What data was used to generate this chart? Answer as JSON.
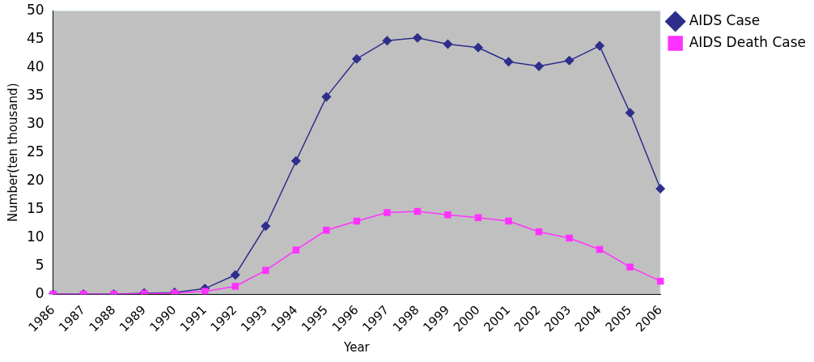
{
  "chart_data": {
    "type": "line",
    "xlabel": "Year",
    "ylabel": "Number(ten thousand)",
    "categories": [
      "1986",
      "1987",
      "1988",
      "1989",
      "1990",
      "1991",
      "1992",
      "1993",
      "1994",
      "1995",
      "1996",
      "1997",
      "1998",
      "1999",
      "2000",
      "2001",
      "2002",
      "2003",
      "2004",
      "2005",
      "2006"
    ],
    "series": [
      {
        "name": "AIDS Case",
        "color": "#2e2e8c",
        "marker": "diamond",
        "values": [
          0,
          0,
          0,
          0.2,
          0.3,
          1,
          3.4,
          12,
          23.5,
          34.8,
          41.5,
          44.7,
          45.2,
          44.1,
          43.5,
          41,
          40.2,
          41.2,
          43.8,
          32,
          18.6
        ]
      },
      {
        "name": "AIDS Death Case",
        "color": "#ff33ff",
        "marker": "square",
        "values": [
          0,
          0,
          0,
          0.1,
          0.2,
          0.5,
          1.4,
          4.2,
          7.8,
          11.3,
          12.9,
          14.4,
          14.6,
          14,
          13.5,
          12.9,
          11,
          9.9,
          7.9,
          4.8,
          2.3
        ]
      }
    ],
    "ylim": [
      0,
      50
    ],
    "yticks": [
      0,
      5,
      10,
      15,
      20,
      25,
      30,
      35,
      40,
      45,
      50
    ],
    "grid": false,
    "legend": "right",
    "line_style": "solid"
  }
}
